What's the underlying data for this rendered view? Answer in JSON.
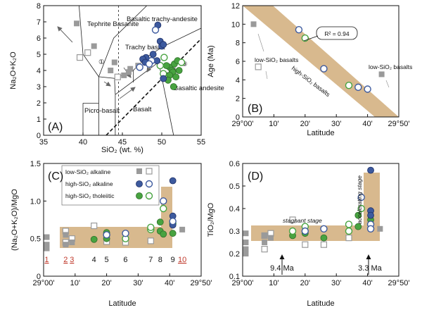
{
  "colors": {
    "gray_fill": "#9a9a9a",
    "gray_open": "#9a9a9a",
    "blue_fill": "#3d5a9e",
    "blue_stroke": "#1e2f66",
    "green_fill": "#48a340",
    "green_stroke": "#2f6f2a",
    "band": "#d8b98e"
  },
  "chart_data": [
    {
      "panel": "(A)",
      "type": "scatter",
      "xlabel": "SiO₂ (wt. %)",
      "ylabel": "Na₂O+K₂O",
      "xlim": [
        35,
        55
      ],
      "ylim": [
        0,
        8
      ],
      "xticks": [
        "35",
        "40",
        "45",
        "50",
        "55"
      ],
      "yticks": [
        "0",
        "1",
        "2",
        "3",
        "4",
        "5",
        "6",
        "7",
        "8"
      ],
      "fields": [
        "Tephrite Basanite",
        "Basaltic trachy-andesite",
        "Trachy basalt",
        "Basaltic andesite",
        "Picro-basalt",
        "Basalt"
      ],
      "markers": [
        "①",
        "②",
        "③"
      ],
      "series": [
        {
          "symbol": "gray-filled",
          "points": [
            [
              39.2,
              6.9
            ],
            [
              41.4,
              5.5
            ],
            [
              43.5,
              4.0
            ],
            [
              44.0,
              4.5
            ],
            [
              45.2,
              3.7
            ],
            [
              45.8,
              3.9
            ],
            [
              46.0,
              4.1
            ],
            [
              47.0,
              4.3
            ]
          ]
        },
        {
          "symbol": "gray-open",
          "points": [
            [
              39.6,
              4.8
            ],
            [
              40.6,
              5.1
            ],
            [
              44.4,
              3.6
            ]
          ]
        },
        {
          "symbol": "blue-filled",
          "points": [
            [
              49.5,
              6.8
            ],
            [
              49.8,
              5.8
            ],
            [
              50.0,
              5.5
            ],
            [
              50.2,
              5.6
            ],
            [
              48.9,
              5.0
            ],
            [
              48.0,
              4.8
            ],
            [
              47.6,
              4.7
            ],
            [
              47.9,
              4.5
            ],
            [
              49.4,
              4.6
            ],
            [
              50.2,
              3.5
            ]
          ]
        },
        {
          "symbol": "blue-open",
          "points": [
            [
              49.2,
              6.5
            ],
            [
              48.7,
              4.6
            ],
            [
              48.4,
              4.4
            ],
            [
              47.2,
              4.2
            ]
          ]
        },
        {
          "symbol": "green-filled",
          "points": [
            [
              51.0,
              4.2
            ],
            [
              51.3,
              4.0
            ],
            [
              51.6,
              4.4
            ],
            [
              51.4,
              3.9
            ],
            [
              52.0,
              4.6
            ],
            [
              51.0,
              3.7
            ],
            [
              50.6,
              4.3
            ],
            [
              51.8,
              3.6
            ],
            [
              50.8,
              3.4
            ],
            [
              52.2,
              4.0
            ],
            [
              51.5,
              3.0
            ]
          ]
        },
        {
          "symbol": "green-open",
          "points": [
            [
              49.8,
              4.3
            ],
            [
              50.3,
              4.8
            ],
            [
              52.5,
              4.5
            ],
            [
              50.2,
              3.8
            ]
          ]
        }
      ]
    },
    {
      "panel": "(B)",
      "type": "scatter",
      "xlabel": "Latitude",
      "ylabel": "Age (Ma)",
      "xlim": [
        29.0,
        29.8333
      ],
      "ylim": [
        0,
        12
      ],
      "xticks": [
        "29°00'",
        "10'",
        "20'",
        "30'",
        "40'",
        "29°50'"
      ],
      "yticks": [
        "0",
        "2",
        "4",
        "6",
        "8",
        "10",
        "12"
      ],
      "annotation": "R² = 0.94",
      "band_label": "high-SiO₂ basalts",
      "labels": [
        "low-SiO₂ basalts",
        "low-SiO₂ basalts"
      ],
      "series": [
        {
          "symbol": "gray-filled",
          "points": [
            [
              29.0583,
              10.0
            ],
            [
              29.7417,
              4.6
            ]
          ]
        },
        {
          "symbol": "gray-open",
          "points": [
            [
              29.0833,
              5.4
            ]
          ]
        },
        {
          "symbol": "blue-open",
          "points": [
            [
              29.3,
              9.4
            ],
            [
              29.4333,
              5.2
            ],
            [
              29.6167,
              3.2
            ],
            [
              29.6667,
              3.0
            ]
          ]
        },
        {
          "symbol": "green-open",
          "points": [
            [
              29.3333,
              8.5
            ],
            [
              29.5667,
              3.4
            ]
          ]
        }
      ]
    },
    {
      "panel": "(C)",
      "type": "scatter",
      "xlabel": "Latitude",
      "ylabel": "(Na₂O+K₂O)/MgO",
      "xlim": [
        29.0,
        29.8333
      ],
      "ylim": [
        0,
        1.5
      ],
      "xticks": [
        "29°00'",
        "10'",
        "20'",
        "30'",
        "40'",
        "29°50'"
      ],
      "yticks": [
        "0",
        "0.5",
        "1.0",
        "1.5"
      ],
      "legend": [
        "low-SiO₂ alkaline",
        "high-SiO₂ alkaline",
        "high-SiO₂ tholeiitic"
      ],
      "site_labels": [
        "1",
        "2",
        "3",
        "4",
        "5",
        "6",
        "7",
        "8",
        "9",
        "10"
      ],
      "series": [
        {
          "symbol": "gray-filled",
          "points": [
            [
              29.0167,
              0.52
            ],
            [
              29.0167,
              0.42
            ],
            [
              29.0167,
              0.37
            ],
            [
              29.1167,
              0.55
            ],
            [
              29.1167,
              0.42
            ],
            [
              29.15,
              0.45
            ],
            [
              29.7333,
              0.62
            ]
          ]
        },
        {
          "symbol": "gray-open",
          "points": [
            [
              29.1167,
              0.6
            ],
            [
              29.1167,
              0.45
            ],
            [
              29.15,
              0.5
            ],
            [
              29.2667,
              0.67
            ],
            [
              29.3333,
              0.46
            ],
            [
              29.4333,
              0.45
            ],
            [
              29.5667,
              0.47
            ]
          ]
        },
        {
          "symbol": "blue-filled",
          "points": [
            [
              29.6833,
              1.27
            ],
            [
              29.6833,
              0.8
            ],
            [
              29.6833,
              0.68
            ]
          ]
        },
        {
          "symbol": "blue-open",
          "points": [
            [
              29.3333,
              0.55
            ],
            [
              29.4333,
              0.57
            ],
            [
              29.6333,
              1.0
            ],
            [
              29.6833,
              0.73
            ]
          ]
        },
        {
          "symbol": "green-filled",
          "points": [
            [
              29.2667,
              0.49
            ],
            [
              29.3333,
              0.5
            ],
            [
              29.3333,
              0.58
            ],
            [
              29.6167,
              0.72
            ],
            [
              29.6167,
              0.6
            ],
            [
              29.6333,
              0.56
            ],
            [
              29.6833,
              0.57
            ]
          ]
        },
        {
          "symbol": "green-open",
          "points": [
            [
              29.4333,
              0.5
            ],
            [
              29.5667,
              0.62
            ],
            [
              29.5667,
              0.65
            ],
            [
              29.6333,
              0.9
            ],
            [
              29.6833,
              0.7
            ]
          ]
        }
      ]
    },
    {
      "panel": "(D)",
      "type": "scatter",
      "xlabel": "Latitude",
      "ylabel": "TiO₂/MgO",
      "xlim": [
        29.0,
        29.8333
      ],
      "ylim": [
        0.1,
        0.6
      ],
      "xticks": [
        "29°00'",
        "10'",
        "20'",
        "30'",
        "40'",
        "29°50'"
      ],
      "yticks": [
        "0.1",
        "0.2",
        "0.3",
        "0.4",
        "0.5",
        "0.6"
      ],
      "annotations": [
        "stagnant stage",
        "accelerating stage",
        "9.4 Ma",
        "3.3 Ma"
      ],
      "series": [
        {
          "symbol": "gray-filled",
          "points": [
            [
              29.0167,
              0.29
            ],
            [
              29.0167,
              0.25
            ],
            [
              29.0167,
              0.22
            ],
            [
              29.0167,
              0.2
            ],
            [
              29.1167,
              0.28
            ],
            [
              29.1167,
              0.25
            ],
            [
              29.15,
              0.27
            ],
            [
              29.7333,
              0.31
            ]
          ]
        },
        {
          "symbol": "gray-open",
          "points": [
            [
              29.1167,
              0.28
            ],
            [
              29.1167,
              0.22
            ],
            [
              29.15,
              0.29
            ],
            [
              29.2667,
              0.35
            ],
            [
              29.3333,
              0.24
            ],
            [
              29.4333,
              0.24
            ],
            [
              29.5667,
              0.27
            ]
          ]
        },
        {
          "symbol": "blue-filled",
          "points": [
            [
              29.6833,
              0.57
            ],
            [
              29.6833,
              0.39
            ],
            [
              29.6833,
              0.37
            ]
          ]
        },
        {
          "symbol": "blue-open",
          "points": [
            [
              29.3333,
              0.3
            ],
            [
              29.4333,
              0.31
            ],
            [
              29.6333,
              0.45
            ],
            [
              29.6833,
              0.33
            ],
            [
              29.6833,
              0.31
            ]
          ]
        },
        {
          "symbol": "green-filled",
          "points": [
            [
              29.2667,
              0.28
            ],
            [
              29.3333,
              0.29
            ],
            [
              29.4333,
              0.27
            ],
            [
              29.6167,
              0.37
            ],
            [
              29.6167,
              0.32
            ],
            [
              29.6833,
              0.35
            ]
          ]
        },
        {
          "symbol": "green-open",
          "points": [
            [
              29.2667,
              0.3
            ],
            [
              29.3333,
              0.32
            ],
            [
              29.5667,
              0.3
            ],
            [
              29.5667,
              0.33
            ],
            [
              29.6333,
              0.4
            ]
          ]
        }
      ]
    }
  ]
}
